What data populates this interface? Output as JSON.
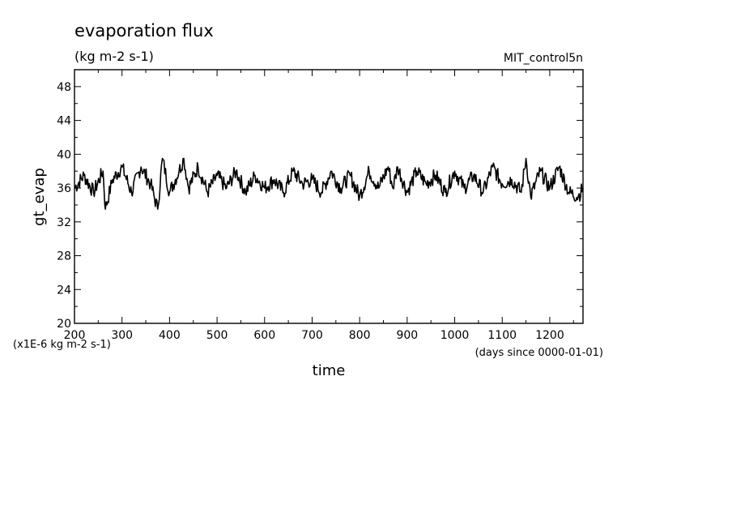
{
  "chart_data": {
    "type": "line",
    "title": "evaporation flux",
    "subtitle": "(kg m-2 s-1)",
    "dataset_label": "MIT_control5n",
    "xlabel": "time",
    "x_units": "(days since 0000-01-01)",
    "ylabel": "gt_evap",
    "y_units": "(x1E-6 kg m-2 s-1)",
    "xlim": [
      200,
      1270
    ],
    "ylim": [
      20,
      50
    ],
    "x_ticks": [
      200,
      300,
      400,
      500,
      600,
      700,
      800,
      900,
      1000,
      1100,
      1200
    ],
    "y_ticks": [
      20,
      24,
      28,
      32,
      36,
      40,
      44,
      48
    ],
    "grid": false,
    "colors": {
      "line": "#000000",
      "axes": "#000000",
      "background": "#ffffff"
    },
    "series": [
      {
        "x": [
          200,
          220,
          240,
          260,
          265,
          280,
          300,
          320,
          340,
          360,
          375,
          385,
          400,
          420,
          430,
          440,
          460,
          480,
          500,
          520,
          540,
          560,
          580,
          600,
          620,
          640,
          660,
          680,
          700,
          720,
          740,
          760,
          780,
          800,
          820,
          840,
          860,
          870,
          880,
          900,
          920,
          940,
          960,
          980,
          1000,
          1020,
          1040,
          1060,
          1080,
          1100,
          1120,
          1140,
          1150,
          1160,
          1180,
          1200,
          1220,
          1240,
          1260,
          1270
        ],
        "values": [
          36.0,
          37.5,
          35.5,
          38.0,
          33.5,
          37.0,
          38.5,
          35.5,
          38.5,
          36.5,
          33.5,
          39.5,
          35.5,
          38.0,
          39.5,
          36.0,
          38.5,
          35.5,
          37.5,
          36.0,
          38.0,
          35.5,
          37.5,
          36.0,
          37.0,
          35.5,
          38.0,
          36.5,
          37.0,
          35.5,
          38.0,
          36.0,
          37.5,
          35.0,
          38.0,
          36.0,
          38.5,
          36.0,
          38.5,
          35.5,
          38.0,
          36.5,
          37.5,
          35.5,
          38.0,
          36.0,
          37.5,
          35.5,
          38.5,
          36.5,
          37.0,
          35.5,
          39.5,
          35.0,
          38.0,
          36.0,
          38.5,
          35.5,
          35.0,
          36.0
        ]
      }
    ]
  }
}
